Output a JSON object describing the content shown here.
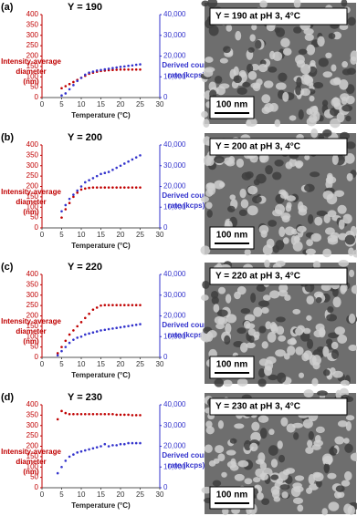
{
  "chart_data": [
    {
      "type": "scatter",
      "panel_label": "(a)",
      "title": "Y = 190",
      "xlabel": "Temperature (°C)",
      "ylabel": [
        "Intensity-average",
        "diameter",
        "(nm)"
      ],
      "y2label": [
        "Derived count",
        "rate (kcps)"
      ],
      "image_caption": "Y = 190 at pH 3, 4°C",
      "scale_bar": "100 nm",
      "xlim": [
        0,
        30
      ],
      "xticks": [
        0,
        5,
        10,
        15,
        20,
        25,
        30
      ],
      "ylim": [
        0,
        400
      ],
      "yticks": [
        0,
        50,
        100,
        150,
        200,
        250,
        300,
        350,
        400
      ],
      "y2lim": [
        0,
        40000
      ],
      "y2ticks": [
        0,
        {
          "value": 10000,
          "label": "10,000"
        },
        {
          "value": 20000,
          "label": "20,000"
        },
        {
          "value": 30000,
          "label": "30,000"
        },
        {
          "value": 40000,
          "label": "40,000"
        }
      ],
      "x": [
        4,
        5,
        6,
        7,
        8,
        9,
        10,
        11,
        12,
        13,
        14,
        15,
        16,
        17,
        18,
        19,
        20,
        21,
        22,
        23,
        24,
        25
      ],
      "series": [
        {
          "color": "#c00000",
          "values": [
            null,
            45,
            55,
            65,
            75,
            85,
            95,
            105,
            115,
            120,
            125,
            128,
            130,
            132,
            133,
            134,
            135,
            135,
            135,
            135,
            135,
            135
          ]
        },
        {
          "color": "#3333cc",
          "axis": "y2",
          "values": [
            null,
            1000,
            2000,
            4000,
            6000,
            8000,
            9500,
            11000,
            12000,
            12500,
            13000,
            13300,
            13600,
            13900,
            14200,
            14500,
            14800,
            15000,
            15300,
            15500,
            15800,
            16000
          ]
        }
      ]
    },
    {
      "type": "scatter",
      "panel_label": "(b)",
      "title": "Y = 200",
      "xlabel": "Temperature (°C)",
      "ylabel": [
        "Intensity-average",
        "diameter",
        "(nm)"
      ],
      "y2label": [
        "Derived count",
        "rate (kcps)"
      ],
      "image_caption": "Y = 200 at pH 3, 4°C",
      "scale_bar": "100 nm",
      "xlim": [
        0,
        30
      ],
      "xticks": [
        0,
        5,
        10,
        15,
        20,
        25,
        30
      ],
      "ylim": [
        0,
        400
      ],
      "yticks": [
        0,
        50,
        100,
        150,
        200,
        250,
        300,
        350,
        400
      ],
      "y2lim": [
        0,
        40000
      ],
      "y2ticks": [
        0,
        {
          "value": 10000,
          "label": "10,000"
        },
        {
          "value": 20000,
          "label": "20,000"
        },
        {
          "value": 30000,
          "label": "30,000"
        },
        {
          "value": 40000,
          "label": "40,000"
        }
      ],
      "x": [
        4,
        5,
        6,
        7,
        8,
        9,
        10,
        11,
        12,
        13,
        14,
        15,
        16,
        17,
        18,
        19,
        20,
        21,
        22,
        23,
        24,
        25
      ],
      "series": [
        {
          "color": "#c00000",
          "values": [
            null,
            50,
            90,
            120,
            150,
            170,
            185,
            190,
            193,
            195,
            195,
            195,
            195,
            195,
            195,
            195,
            195,
            195,
            195,
            195,
            195,
            195
          ]
        },
        {
          "color": "#3333cc",
          "axis": "y2",
          "values": [
            null,
            8000,
            11000,
            14000,
            16000,
            18000,
            20000,
            22000,
            23000,
            24000,
            25000,
            26000,
            26500,
            27000,
            28000,
            29000,
            30000,
            31000,
            32000,
            33000,
            34000,
            35000
          ]
        }
      ]
    },
    {
      "type": "scatter",
      "panel_label": "(c)",
      "title": "Y = 220",
      "xlabel": "Temperature (°C)",
      "ylabel": [
        "Intensity-average",
        "diameter",
        "(nm)"
      ],
      "y2label": [
        "Derived count",
        "rate (kcps)"
      ],
      "image_caption": "Y = 220 at pH 3, 4°C",
      "scale_bar": "100 nm",
      "xlim": [
        0,
        30
      ],
      "xticks": [
        0,
        5,
        10,
        15,
        20,
        25,
        30
      ],
      "ylim": [
        0,
        400
      ],
      "yticks": [
        0,
        50,
        100,
        150,
        200,
        250,
        300,
        350,
        400
      ],
      "y2lim": [
        0,
        40000
      ],
      "y2ticks": [
        0,
        {
          "value": 10000,
          "label": "10,000"
        },
        {
          "value": 20000,
          "label": "20,000"
        },
        {
          "value": 30000,
          "label": "30,000"
        },
        {
          "value": 40000,
          "label": "40,000"
        }
      ],
      "x": [
        4,
        5,
        6,
        7,
        8,
        9,
        10,
        11,
        12,
        13,
        14,
        15,
        16,
        17,
        18,
        19,
        20,
        21,
        22,
        23,
        24,
        25
      ],
      "series": [
        {
          "color": "#c00000",
          "values": [
            20,
            50,
            80,
            110,
            130,
            150,
            170,
            190,
            210,
            230,
            240,
            250,
            252,
            252,
            252,
            252,
            252,
            252,
            252,
            252,
            252,
            252
          ]
        },
        {
          "color": "#3333cc",
          "axis": "y2",
          "values": [
            1000,
            3000,
            5000,
            7000,
            8500,
            9500,
            10000,
            11000,
            11500,
            12000,
            12500,
            13000,
            13300,
            13600,
            13900,
            14200,
            14500,
            14800,
            15100,
            15400,
            15700,
            16000
          ]
        }
      ]
    },
    {
      "type": "scatter",
      "panel_label": "(d)",
      "title": "Y = 230",
      "xlabel": "Temperature (°C)",
      "ylabel": [
        "Intensity-average",
        "diameter",
        "(nm)"
      ],
      "y2label": [
        "Derived count",
        "rate (kcps)"
      ],
      "image_caption": "Y = 230 at pH 3, 4°C",
      "scale_bar": "100 nm",
      "xlim": [
        0,
        30
      ],
      "xticks": [
        0,
        5,
        10,
        15,
        20,
        25,
        30
      ],
      "ylim": [
        0,
        400
      ],
      "yticks": [
        0,
        50,
        100,
        150,
        200,
        250,
        300,
        350,
        400
      ],
      "y2lim": [
        0,
        40000
      ],
      "y2ticks": [
        0,
        {
          "value": 10000,
          "label": "10,000"
        },
        {
          "value": 20000,
          "label": "20,000"
        },
        {
          "value": 30000,
          "label": "30,000"
        },
        {
          "value": 40000,
          "label": "40,000"
        }
      ],
      "x": [
        4,
        5,
        6,
        7,
        8,
        9,
        10,
        11,
        12,
        13,
        14,
        15,
        16,
        17,
        18,
        19,
        20,
        21,
        22,
        23,
        24,
        25
      ],
      "series": [
        {
          "color": "#c00000",
          "values": [
            330,
            370,
            360,
            355,
            355,
            355,
            355,
            355,
            355,
            355,
            355,
            355,
            355,
            355,
            355,
            352,
            352,
            352,
            352,
            350,
            350,
            350
          ]
        },
        {
          "color": "#3333cc",
          "axis": "y2",
          "values": [
            7000,
            10000,
            13000,
            15000,
            16000,
            17000,
            17500,
            18000,
            18500,
            19000,
            19500,
            20000,
            21000,
            20000,
            20500,
            20500,
            21000,
            21000,
            21500,
            21500,
            21500,
            21500
          ]
        }
      ]
    }
  ]
}
